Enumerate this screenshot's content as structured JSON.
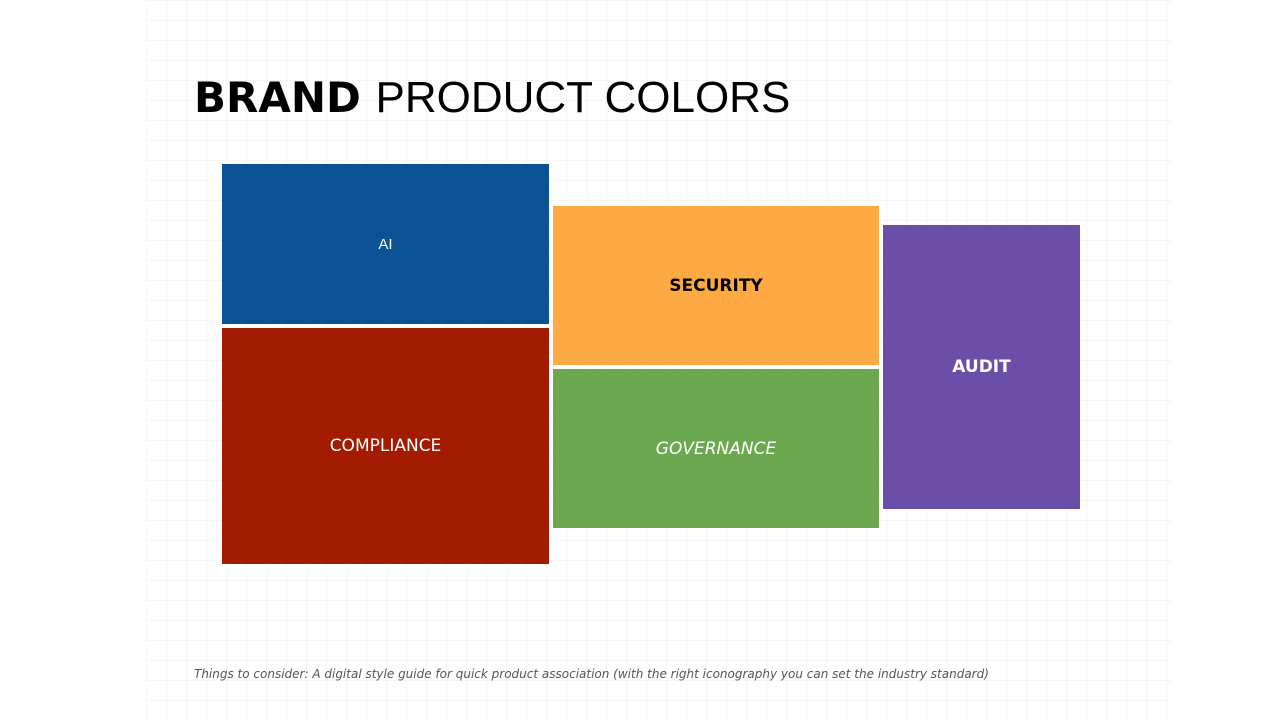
{
  "title": {
    "bold_part": "BRAND",
    "light_part": "PRODUCT COLORS"
  },
  "tiles": {
    "ai": {
      "label": "AI",
      "color": "#0A5294",
      "text_color": "#FFFFFF"
    },
    "compliance": {
      "label": "COMPLIANCE",
      "color": "#A31B00",
      "text_color": "#FFFFFF"
    },
    "security": {
      "label": "SECURITY",
      "color": "#FEAA44",
      "text_color": "#000000"
    },
    "governance": {
      "label": "GOVERNANCE",
      "color": "#6CA84F",
      "text_color": "#FFFFFF"
    },
    "audit": {
      "label": "AUDIT",
      "color": "#6A4EA8",
      "text_color": "#FFFFFF"
    }
  },
  "footnote": "Things to consider: A digital style guide for quick product association (with the right iconography you can set the industry standard)"
}
